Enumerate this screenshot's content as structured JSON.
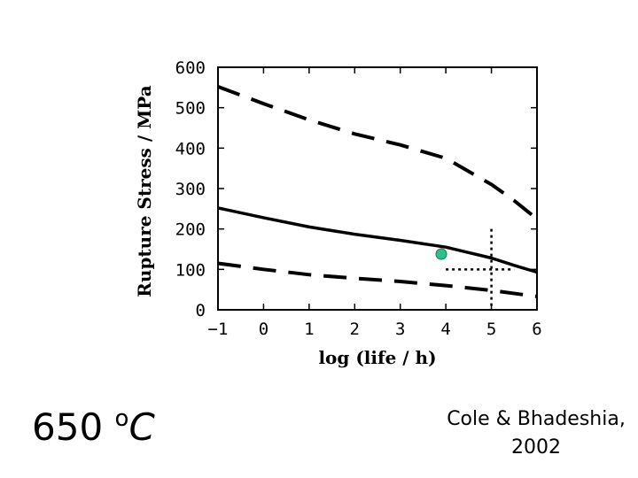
{
  "chart_data": {
    "type": "line",
    "xlabel": "log (life / h)",
    "ylabel": "Rupture Stress / MPa",
    "xlim": [
      -1,
      6
    ],
    "ylim": [
      0,
      600
    ],
    "x_ticks": [
      "−1",
      "0",
      "1",
      "2",
      "3",
      "4",
      "5",
      "6"
    ],
    "y_ticks": [
      "0",
      "100",
      "200",
      "300",
      "400",
      "500",
      "600"
    ],
    "grid": false,
    "series": [
      {
        "style": "solid",
        "x": [
          -1,
          0,
          1,
          2,
          3,
          4,
          5,
          5.5,
          6
        ],
        "y": [
          252,
          228,
          205,
          187,
          172,
          155,
          128,
          110,
          93
        ]
      },
      {
        "style": "dashed",
        "x": [
          -1,
          0,
          1,
          2,
          3,
          4,
          5,
          5.5,
          6
        ],
        "y": [
          552,
          510,
          470,
          435,
          408,
          375,
          310,
          270,
          225
        ]
      },
      {
        "style": "dashed",
        "x": [
          -1,
          0,
          1,
          2,
          3,
          4,
          5,
          6
        ],
        "y": [
          115,
          100,
          87,
          78,
          70,
          60,
          48,
          33
        ]
      }
    ],
    "point": {
      "x": 3.9,
      "y": 138,
      "color": "#2fbf8a"
    },
    "reference_lines": {
      "x": 5,
      "y": 100,
      "style": "dotted"
    }
  },
  "temperature": {
    "value": "650",
    "degree": "o",
    "unit": "C"
  },
  "citation": {
    "line1": "Cole & Bhadeshia,",
    "line2": "2002"
  }
}
